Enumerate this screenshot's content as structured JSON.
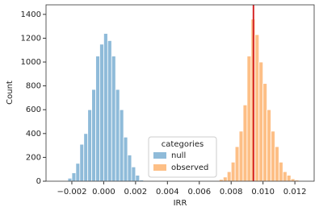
{
  "chart_data": {
    "type": "histogram",
    "xlabel": "IRR",
    "ylabel": "Count",
    "xlim": [
      -0.00362,
      0.01321
    ],
    "ylim": [
      0,
      1480
    ],
    "xticks": [
      {
        "value": -0.002,
        "label": "−0.002"
      },
      {
        "value": 0,
        "label": "0.000"
      },
      {
        "value": 0.002,
        "label": "0.002"
      },
      {
        "value": 0.004,
        "label": "0.004"
      },
      {
        "value": 0.006,
        "label": "0.006"
      },
      {
        "value": 0.008,
        "label": "0.008"
      },
      {
        "value": 0.01,
        "label": "0.010"
      },
      {
        "value": 0.012,
        "label": "0.012"
      }
    ],
    "yticks": [
      0,
      200,
      400,
      600,
      800,
      1000,
      1200,
      1400
    ],
    "legend_title": "categories",
    "legend_position": "lower center",
    "series": [
      {
        "name": "null",
        "color": "#8fbbd9",
        "bins": [
          -0.0025,
          -0.00225,
          -0.002,
          -0.00175,
          -0.0015,
          -0.00125,
          -0.001,
          -0.00075,
          -0.0005,
          -0.00025,
          0,
          0.00025,
          0.0005,
          0.00075,
          0.001,
          0.00125,
          0.0015,
          0.00175,
          0.002,
          0.00225,
          0.0025
        ],
        "values": [
          5,
          25,
          70,
          150,
          310,
          400,
          600,
          770,
          1050,
          1150,
          1240,
          1180,
          1050,
          770,
          600,
          370,
          220,
          120,
          50,
          10
        ]
      },
      {
        "name": "observed",
        "color": "#fdbf86",
        "bins": [
          0.007,
          0.00725,
          0.0075,
          0.00775,
          0.008,
          0.00825,
          0.0085,
          0.00875,
          0.009,
          0.00925,
          0.0095,
          0.00975,
          0.01,
          0.01025,
          0.0105,
          0.01075,
          0.011,
          0.01125,
          0.0115,
          0.01175,
          0.012,
          0.01225,
          0.0125
        ],
        "values": [
          5,
          15,
          35,
          80,
          160,
          290,
          420,
          640,
          1050,
          1360,
          1230,
          1000,
          820,
          600,
          420,
          290,
          160,
          80,
          50,
          20,
          10,
          5
        ]
      }
    ],
    "vline": {
      "value": 0.0094,
      "color": "#d62728"
    }
  }
}
